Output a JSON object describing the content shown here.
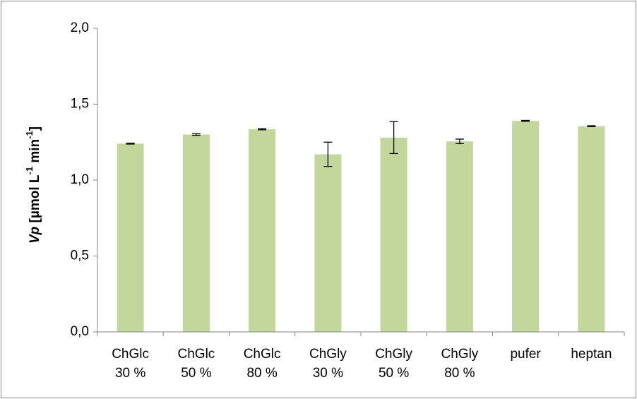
{
  "chart_data": {
    "type": "bar",
    "categories": [
      [
        "ChGlc",
        "30 %"
      ],
      [
        "ChGlc",
        "50 %"
      ],
      [
        "ChGlc",
        "80 %"
      ],
      [
        "ChGly",
        "30 %"
      ],
      [
        "ChGly",
        "50 %"
      ],
      [
        "ChGly",
        "80 %"
      ],
      [
        "pufer"
      ],
      [
        "heptan"
      ]
    ],
    "values": [
      1.24,
      1.3,
      1.335,
      1.17,
      1.28,
      1.255,
      1.39,
      1.355
    ],
    "errors": [
      0.003,
      0.005,
      0.004,
      0.08,
      0.105,
      0.015,
      0.003,
      0.003
    ],
    "ylabel": {
      "italic": "V",
      "bold_p": "p",
      "unit_open": " [µmol L",
      "sup1": "-1",
      "unit_mid": " min",
      "sup2": "-1",
      "unit_close": "]"
    },
    "ylim": [
      0,
      2.0
    ],
    "yticks": [
      "0,0",
      "0,5",
      "1,0",
      "1,5",
      "2,0"
    ],
    "ytick_values": [
      0,
      0.5,
      1.0,
      1.5,
      2.0
    ],
    "grid": false,
    "bar_color": "#c3d69b",
    "axis_color": "#868686",
    "error_color": "#000000"
  }
}
